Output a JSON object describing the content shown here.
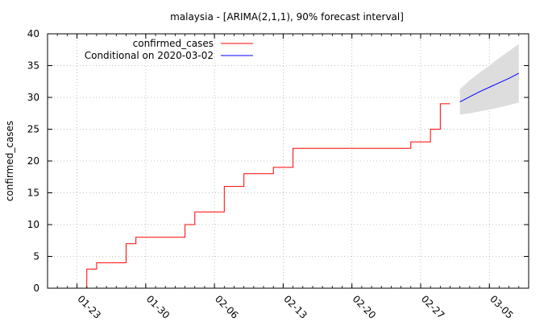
{
  "chart_data": {
    "type": "line",
    "title": "malaysia -  [ARIMA(2,1,1), 90% forecast interval]",
    "xlabel": "",
    "ylabel": "confirmed_cases",
    "grid": true,
    "legend_position": "top-left",
    "xlim": [
      "2020-01-20",
      "2020-03-09"
    ],
    "ylim": [
      0,
      40
    ],
    "x_ticks": [
      "01-23",
      "01-30",
      "02-06",
      "02-13",
      "02-20",
      "02-27",
      "03-05"
    ],
    "y_ticks": [
      0,
      5,
      10,
      15,
      20,
      25,
      30,
      35,
      40
    ],
    "series": [
      {
        "name": "confirmed_cases",
        "color": "#ff0000",
        "x": [
          "2020-01-23",
          "2020-01-24",
          "2020-01-25",
          "2020-01-26",
          "2020-01-27",
          "2020-01-28",
          "2020-01-29",
          "2020-01-30",
          "2020-01-31",
          "2020-02-01",
          "2020-02-02",
          "2020-02-03",
          "2020-02-04",
          "2020-02-05",
          "2020-02-06",
          "2020-02-07",
          "2020-02-08",
          "2020-02-09",
          "2020-02-10",
          "2020-02-11",
          "2020-02-12",
          "2020-02-13",
          "2020-02-14",
          "2020-02-15",
          "2020-02-16",
          "2020-02-17",
          "2020-02-18",
          "2020-02-19",
          "2020-02-20",
          "2020-02-21",
          "2020-02-22",
          "2020-02-23",
          "2020-02-24",
          "2020-02-25",
          "2020-02-26",
          "2020-02-27",
          "2020-02-28",
          "2020-02-29",
          "2020-03-01"
        ],
        "y": [
          0,
          3,
          4,
          4,
          4,
          7,
          8,
          8,
          8,
          8,
          8,
          10,
          12,
          12,
          12,
          16,
          16,
          18,
          18,
          18,
          19,
          19,
          22,
          22,
          22,
          22,
          22,
          22,
          22,
          22,
          22,
          22,
          22,
          22,
          23,
          23,
          25,
          29,
          29
        ]
      },
      {
        "name": "Conditional on 2020-03-02",
        "color": "#0000ff",
        "x": [
          "2020-03-02",
          "2020-03-03",
          "2020-03-04",
          "2020-03-05",
          "2020-03-06",
          "2020-03-07",
          "2020-03-08"
        ],
        "y": [
          29.3,
          30.1,
          30.9,
          31.6,
          32.3,
          33.0,
          33.8
        ]
      }
    ],
    "forecast_interval": {
      "color": "#dddddd",
      "x": [
        "2020-03-02",
        "2020-03-03",
        "2020-03-04",
        "2020-03-05",
        "2020-03-06",
        "2020-03-07",
        "2020-03-08"
      ],
      "lower": [
        27.3,
        27.5,
        27.8,
        28.1,
        28.4,
        28.8,
        29.2
      ],
      "upper": [
        31.3,
        32.7,
        33.9,
        35.0,
        36.2,
        37.3,
        38.4
      ]
    }
  }
}
